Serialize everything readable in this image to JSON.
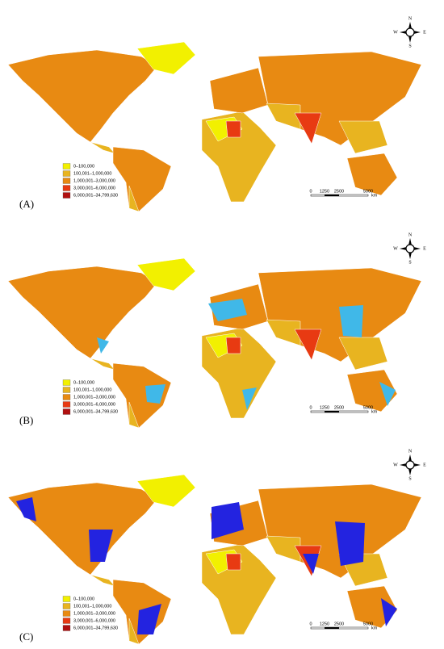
{
  "panels": [
    {
      "label": "(A)"
    },
    {
      "label": "(B)"
    },
    {
      "label": "(C)"
    }
  ],
  "legend": {
    "items": [
      {
        "label": "0–100,000",
        "color": "#f2f000"
      },
      {
        "label": "100,001–1,000,000",
        "color": "#e8b420"
      },
      {
        "label": "1,000,001–3,000,000",
        "color": "#e88a12"
      },
      {
        "label": "3,000,001–6,000,000",
        "color": "#e83a12"
      },
      {
        "label": "6,000,001–34,799,630",
        "color": "#b01010"
      }
    ]
  },
  "compass": {
    "n": "N",
    "s": "S",
    "e": "E",
    "w": "W"
  },
  "scale_bar": {
    "ticks": [
      "0",
      "1250",
      "2500",
      "5000"
    ],
    "unit": "km"
  }
}
